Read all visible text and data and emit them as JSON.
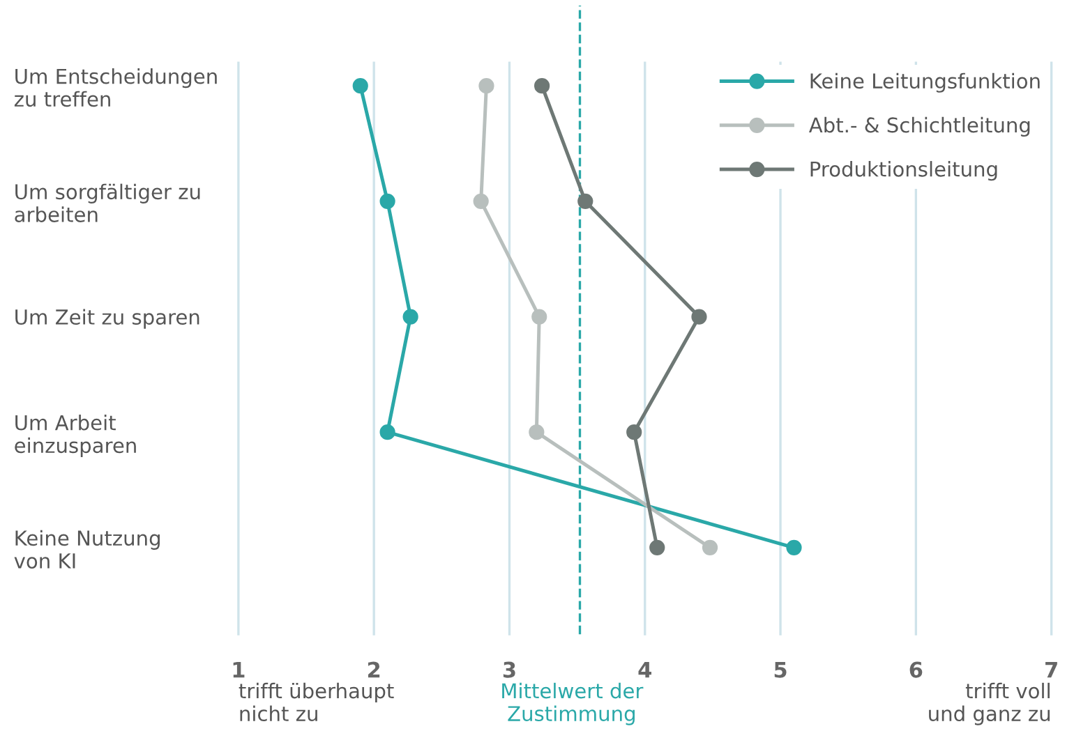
{
  "chart_data": {
    "type": "line",
    "orientation": "horizontal",
    "categories": [
      "Um Entscheidungen\nzu treffen",
      "Um sorgfältiger zu\narbeiten",
      "Um Zeit zu sparen",
      "Um Arbeit\neinzusparen",
      "Keine Nutzung\nvon KI"
    ],
    "series": [
      {
        "name": "Keine Leitungsfunktion",
        "color": "#2aa8a8",
        "values": [
          1.9,
          2.1,
          2.27,
          2.1,
          5.1
        ]
      },
      {
        "name": "Abt.- & Schichtleitung",
        "color": "#b8bfbd",
        "values": [
          2.83,
          2.79,
          3.22,
          3.2,
          4.48
        ]
      },
      {
        "name": "Produktionsleitung",
        "color": "#6e7875",
        "values": [
          3.24,
          3.56,
          4.4,
          3.92,
          4.09
        ]
      }
    ],
    "xlim": [
      1,
      7
    ],
    "xticks": [
      1,
      2,
      3,
      4,
      5,
      6,
      7
    ],
    "ref_lines": [
      {
        "axis": "x",
        "value": 3.52,
        "label": "Mittelwert der\nZustimmung",
        "color": "#2aa8a8",
        "line_style": "dashed"
      }
    ],
    "annotations": [
      "trifft überhaupt\nnicht zu",
      "trifft voll\nund ganz zu"
    ],
    "grid": "x",
    "legend": "top right",
    "marker": "circle",
    "line_style": "solid"
  }
}
